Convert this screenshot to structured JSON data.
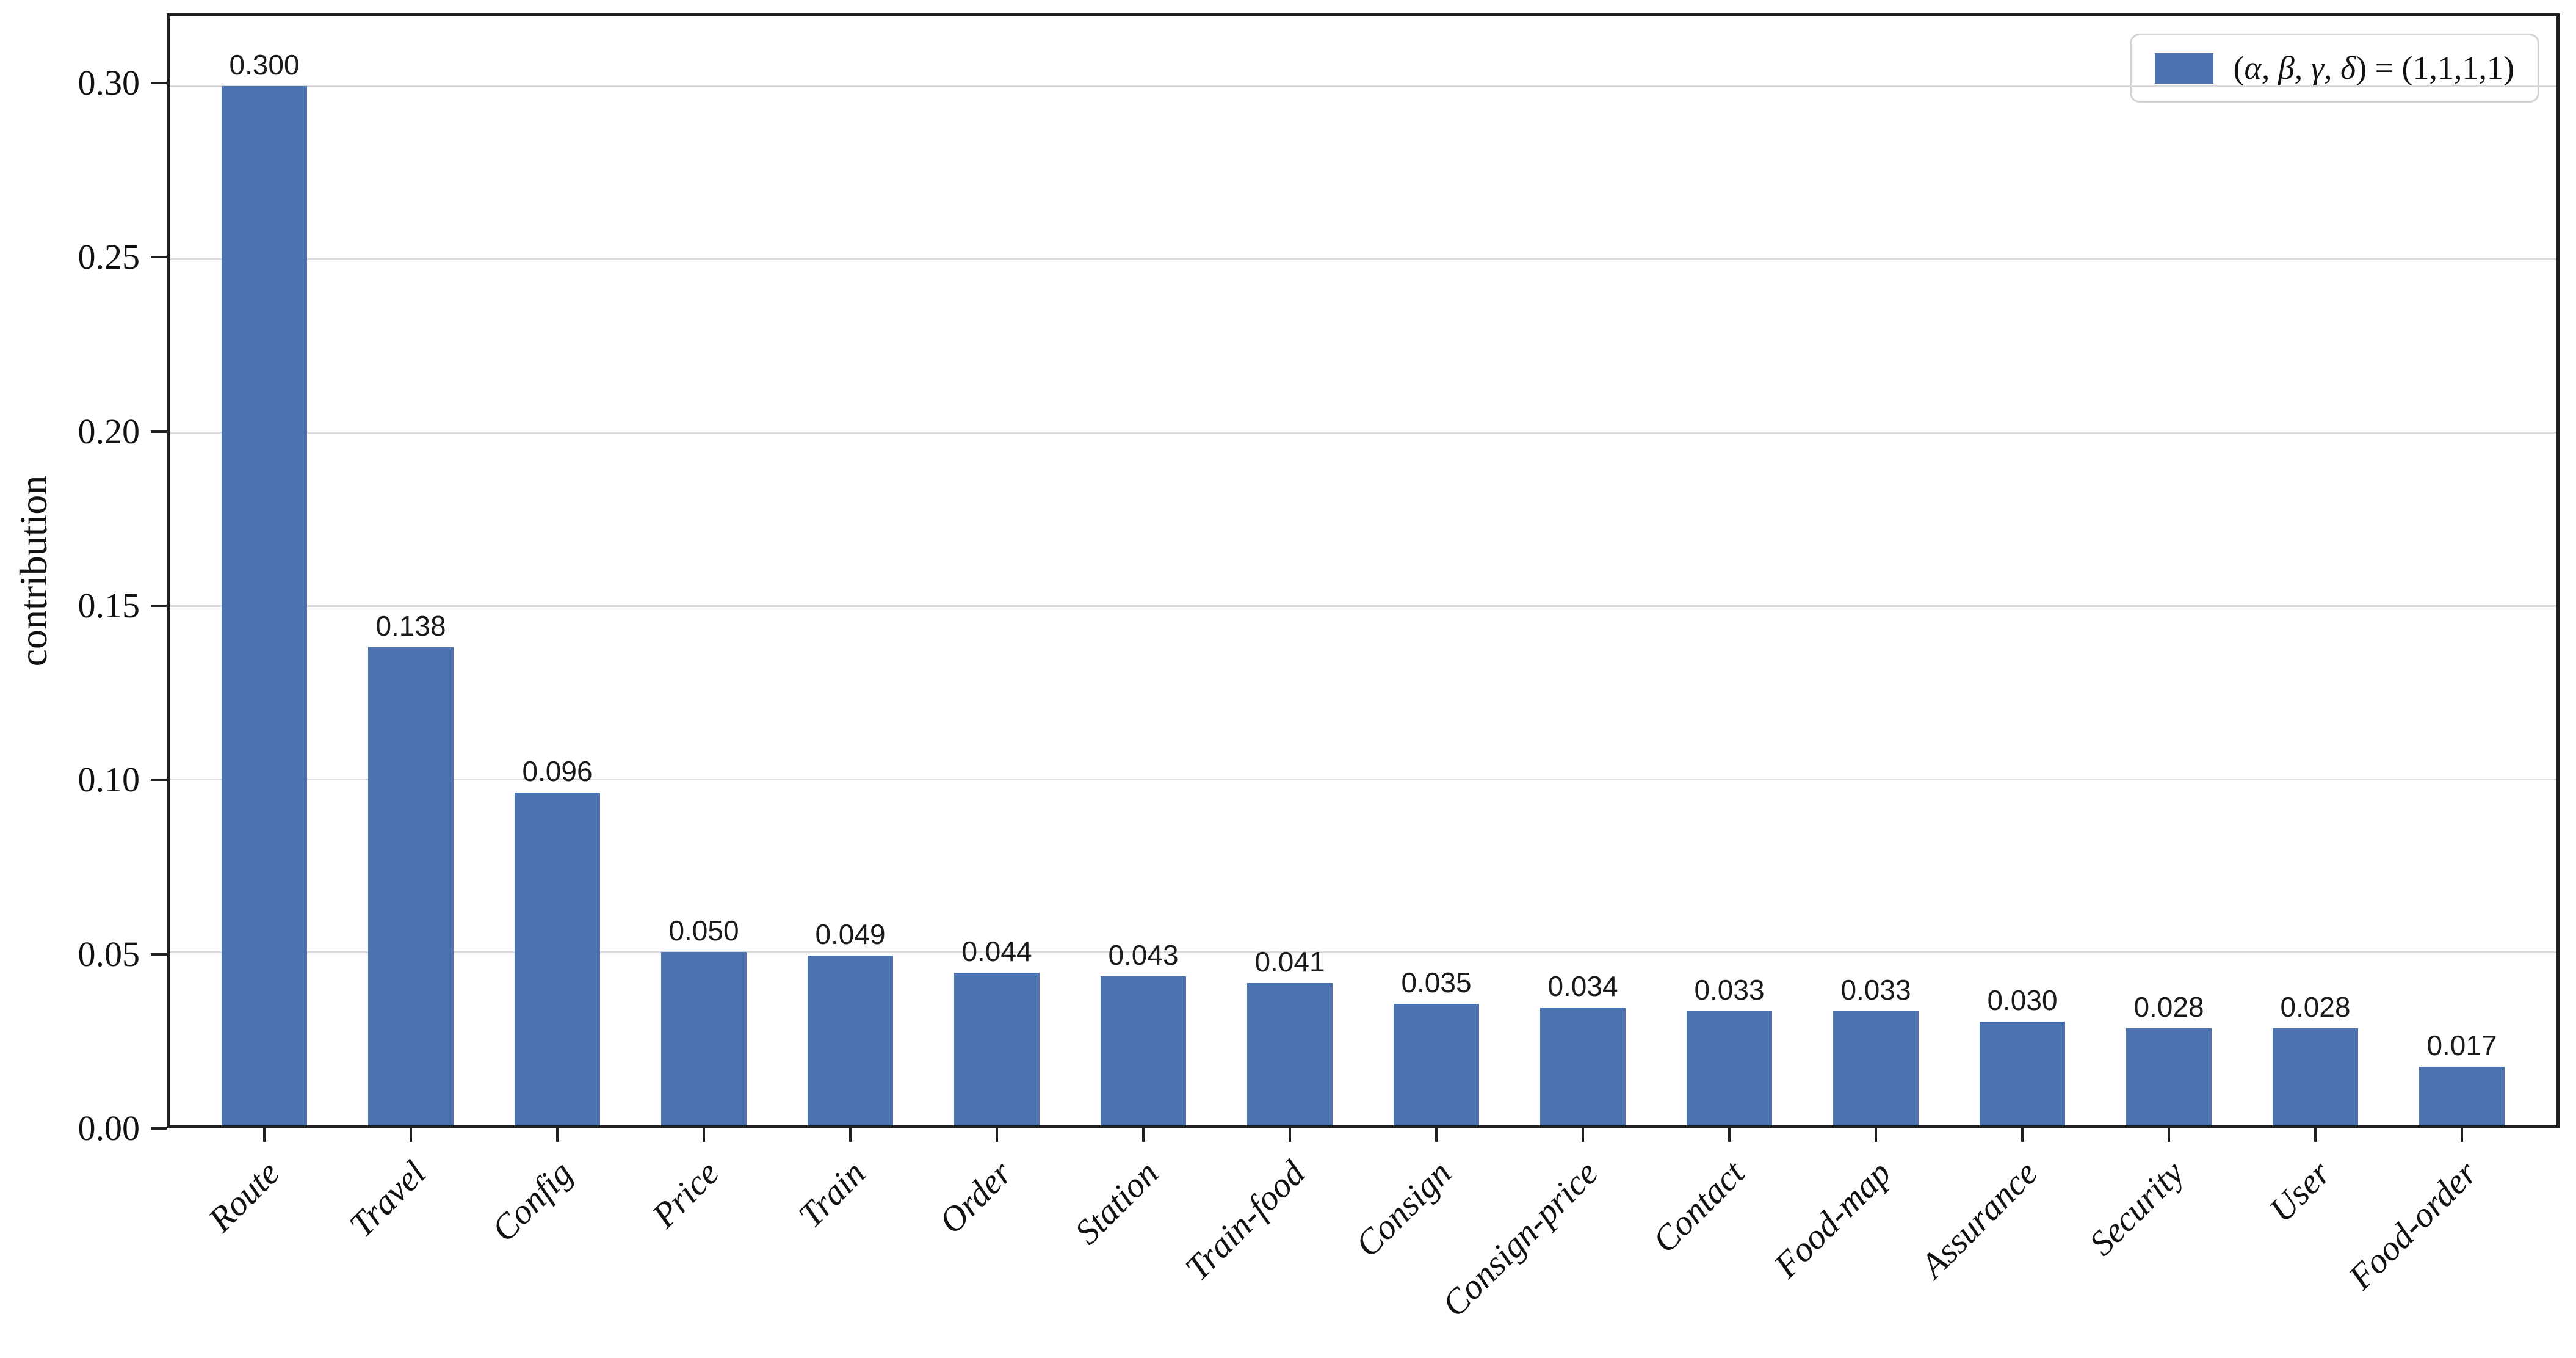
{
  "chart_data": {
    "type": "bar",
    "categories": [
      "Route",
      "Travel",
      "Config",
      "Price",
      "Train",
      "Order",
      "Station",
      "Train-food",
      "Consign",
      "Consign-price",
      "Contact",
      "Food-map",
      "Assurance",
      "Security",
      "User",
      "Food-order"
    ],
    "values": [
      0.3,
      0.138,
      0.096,
      0.05,
      0.049,
      0.044,
      0.043,
      0.041,
      0.035,
      0.034,
      0.033,
      0.033,
      0.03,
      0.028,
      0.028,
      0.017
    ],
    "value_label_decimals": 3,
    "title": "",
    "xlabel": "",
    "ylabel": "contribution",
    "ylim": [
      0,
      0.32
    ],
    "yticks": [
      0,
      0.05,
      0.1,
      0.15,
      0.2,
      0.25,
      0.3
    ],
    "ytick_labels": [
      "0.00",
      "0.05",
      "0.10",
      "0.15",
      "0.20",
      "0.25",
      "0.30"
    ],
    "grid": "horizontal",
    "legend": {
      "position": "upper right",
      "label": "(α, β, γ, δ) = (1,1,1,1)",
      "label_parts": [
        "(",
        "α, β, γ, δ",
        ") = (1,1,1,1)"
      ],
      "swatch_color": "#4C72B0"
    },
    "bar_color": "#4C72B0",
    "grid_color": "#d9d9d9",
    "spine_color": "#1f1f1f"
  }
}
